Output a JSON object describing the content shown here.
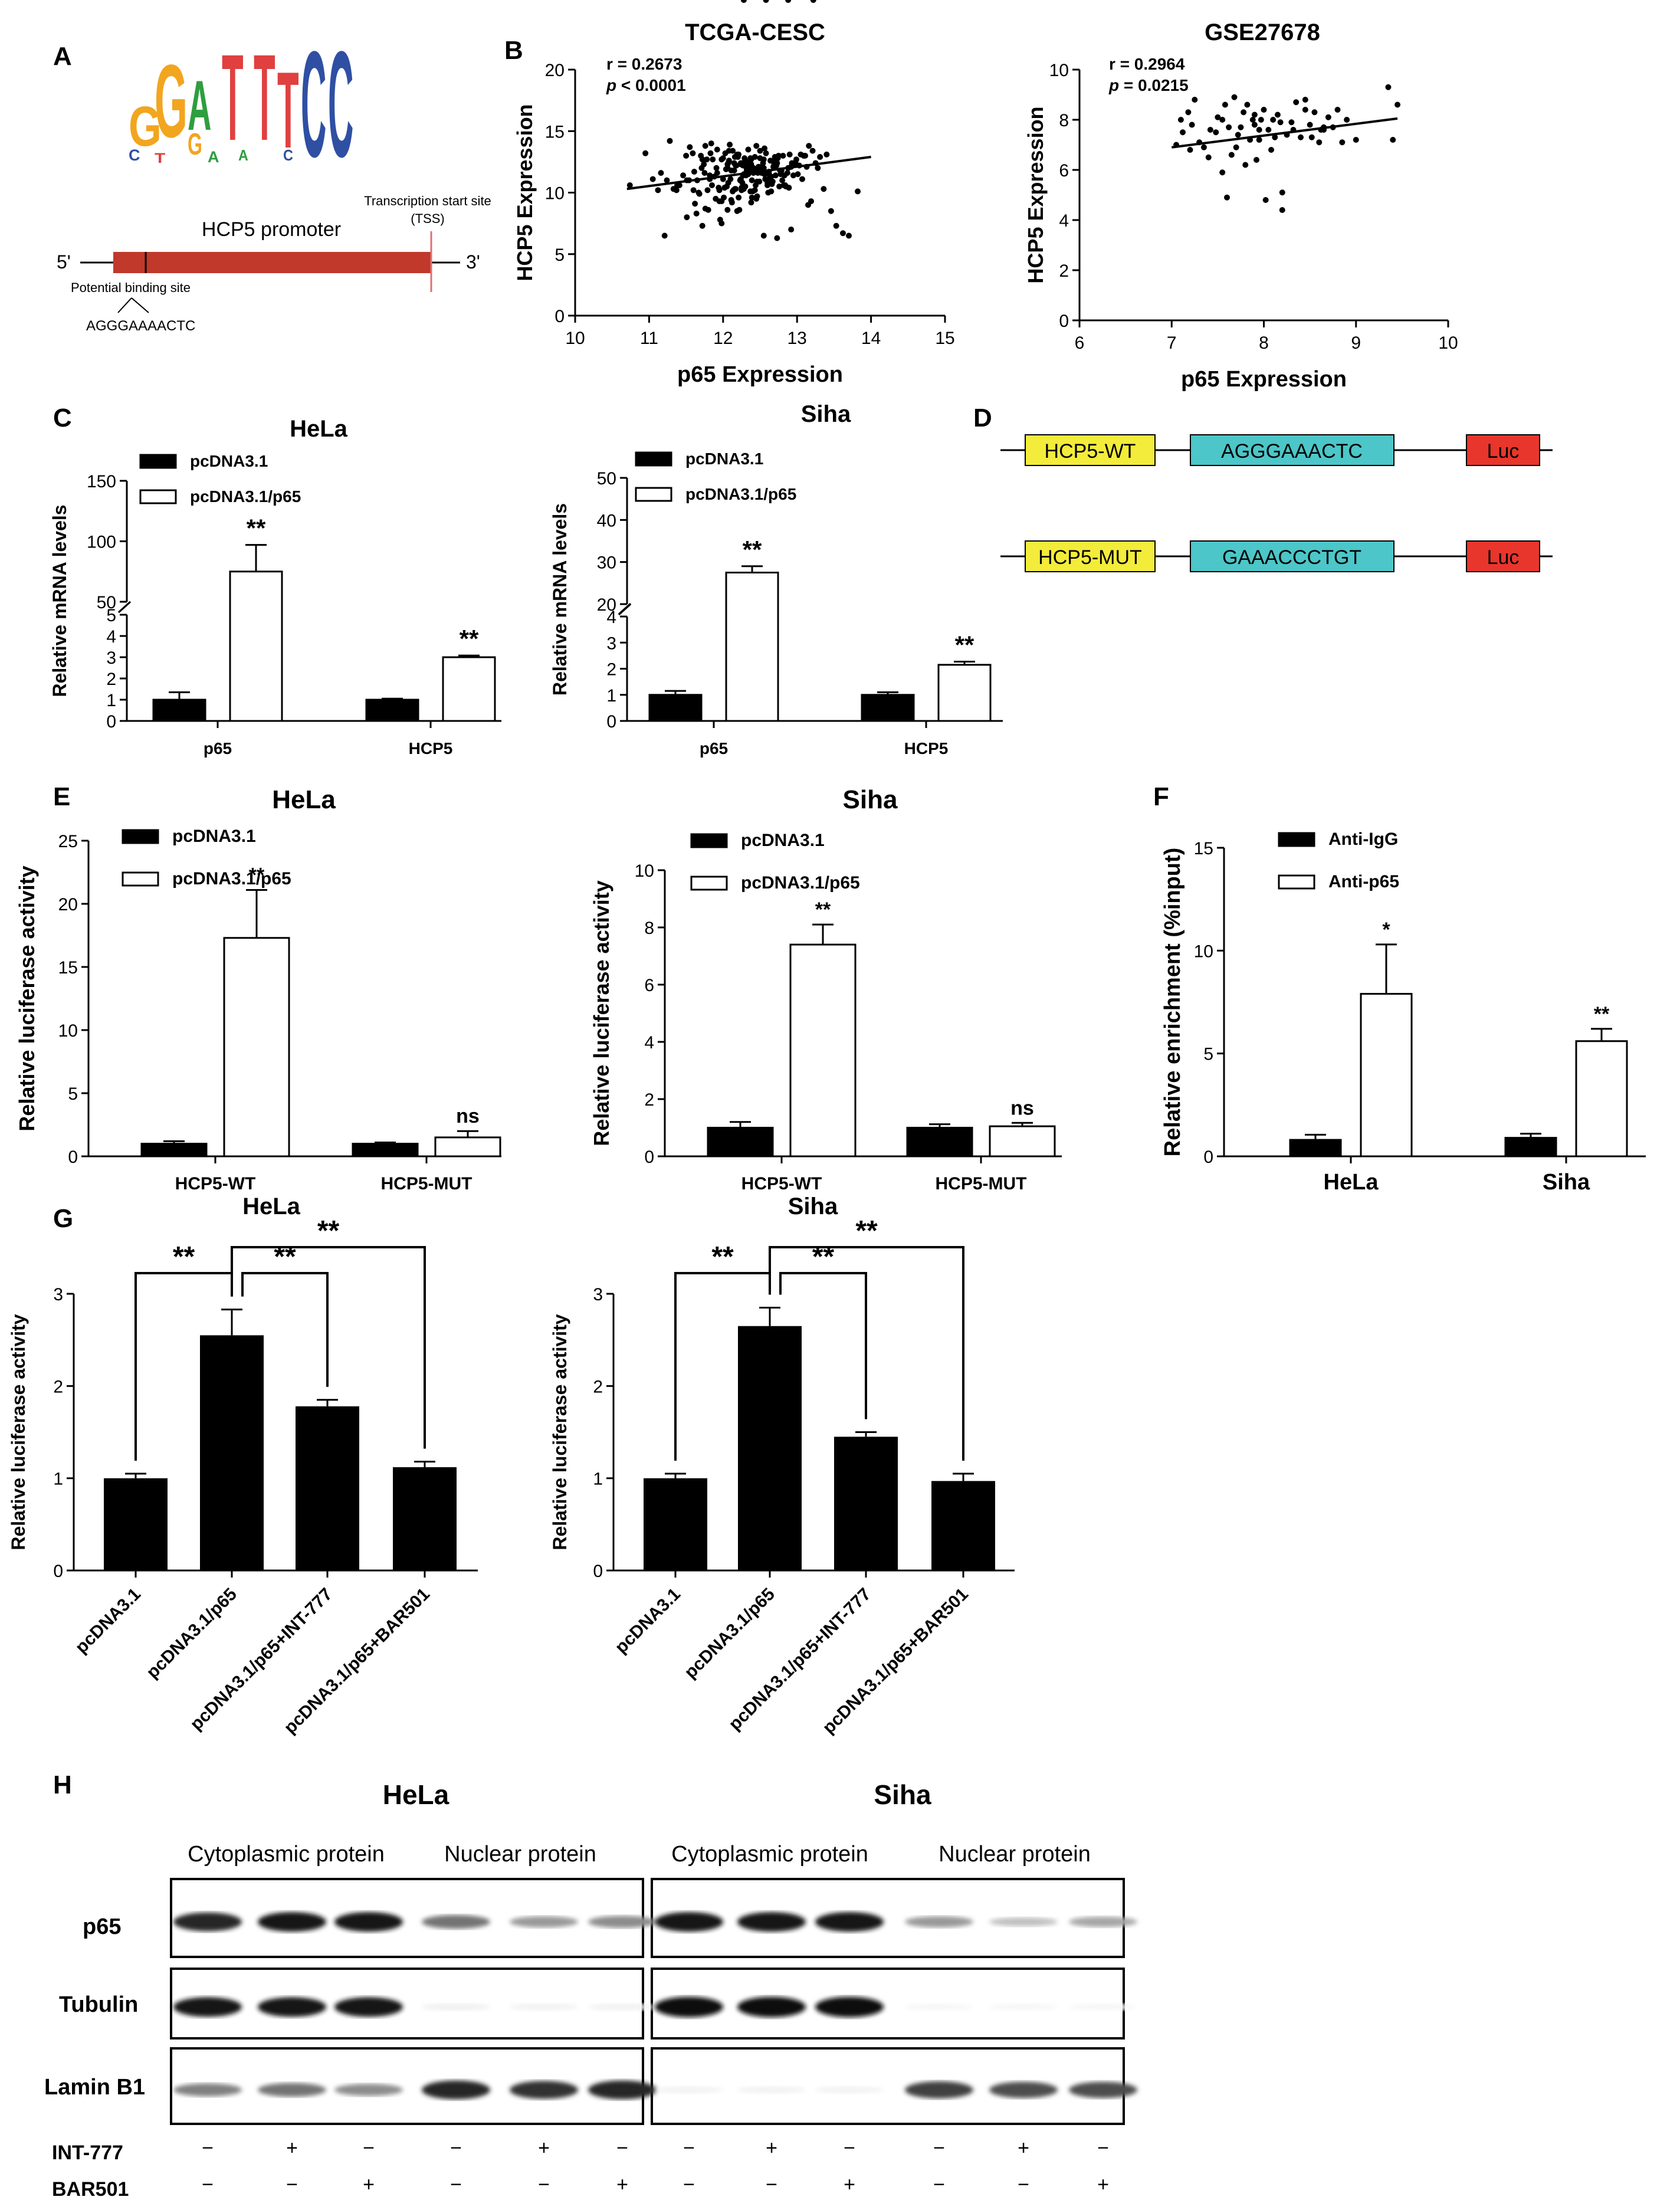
{
  "panel_labels": {
    "A": "A",
    "B": "B",
    "C": "C",
    "D": "D",
    "E": "E",
    "F": "F",
    "G": "G",
    "H": "H"
  },
  "panelA": {
    "logo_letters_top": [
      "G",
      "G",
      "A",
      "T",
      "T",
      "T",
      "C",
      "C"
    ],
    "logo_letters_sub": [
      "C",
      "T",
      "G",
      "A",
      "A",
      "C"
    ],
    "promoter_label": "HCP5 promoter",
    "tss_label": "Transcription start site",
    "tss_abbrev": "(TSS)",
    "five_prime": "5'",
    "three_prime": "3'",
    "binding_site_label": "Potential binding site",
    "binding_site_seq": "AGGGAAAACTC",
    "colors": {
      "promoter": "#c0392b",
      "tss_line": "#e07070",
      "G": "#f2a51f",
      "A": "#2e9e3e",
      "T": "#e04040",
      "C": "#2f4fa3"
    }
  },
  "panelD": {
    "rows": [
      {
        "name": "HCP5-WT",
        "seq": "AGGGAAACTC",
        "reporter": "Luc"
      },
      {
        "name": "HCP5-MUT",
        "seq": "GAAACCCTGT",
        "reporter": "Luc"
      }
    ],
    "colors": {
      "name_box": "#f3ec3a",
      "seq_box": "#4cc6c8",
      "luc_box": "#e8362c"
    }
  },
  "panelH": {
    "cell_titles": [
      "HeLa",
      "Siha"
    ],
    "fraction_labels": [
      "Cytoplasmic protein",
      "Nuclear protein",
      "Cytoplasmic protein",
      "Nuclear protein"
    ],
    "row_labels": [
      "p65",
      "Tubulin",
      "Lamin B1"
    ],
    "treatments": [
      {
        "name": "INT-777",
        "signs": [
          "−",
          "+",
          "−",
          "−",
          "+",
          "−",
          "−",
          "+",
          "−",
          "−",
          "+",
          "−"
        ]
      },
      {
        "name": "BAR501",
        "signs": [
          "−",
          "−",
          "+",
          "−",
          "−",
          "+",
          "−",
          "−",
          "+",
          "−",
          "−",
          "+"
        ]
      }
    ],
    "band_intensity": {
      "p65": [
        0.85,
        0.9,
        0.9,
        0.55,
        0.4,
        0.45,
        0.9,
        0.9,
        0.9,
        0.4,
        0.25,
        0.35
      ],
      "Tubulin": [
        0.9,
        0.9,
        0.9,
        0.06,
        0.05,
        0.05,
        0.95,
        0.95,
        0.95,
        0.03,
        0.03,
        0.03
      ],
      "Lamin B1": [
        0.5,
        0.55,
        0.45,
        0.85,
        0.8,
        0.85,
        0.05,
        0.05,
        0.05,
        0.75,
        0.7,
        0.7
      ]
    }
  },
  "chart_data": [
    {
      "id": "B1",
      "type": "scatter",
      "title": "TCGA-CESC",
      "xlabel": "p65 Expression",
      "ylabel": "HCP5 Expression",
      "xlim": [
        10,
        15
      ],
      "ylim": [
        0,
        20
      ],
      "xticks": [
        10,
        11,
        12,
        13,
        14,
        15
      ],
      "yticks": [
        0,
        5,
        10,
        15,
        20
      ],
      "stats": {
        "r": "r = 0.2673",
        "p_label": "p",
        "p_value": "< 0.0001"
      },
      "fit": {
        "x": [
          10.7,
          14.0
        ],
        "y": [
          10.3,
          12.9
        ]
      },
      "points_x": [
        10.74,
        11.05,
        11.12,
        11.16,
        11.21,
        11.24,
        11.33,
        11.37,
        11.38,
        11.41,
        11.46,
        11.5,
        11.51,
        11.51,
        11.54,
        11.59,
        11.6,
        11.61,
        11.62,
        11.65,
        11.67,
        11.68,
        11.71,
        11.72,
        11.72,
        11.74,
        11.75,
        11.76,
        11.76,
        11.78,
        11.79,
        11.8,
        11.82,
        11.82,
        11.83,
        11.85,
        11.86,
        11.88,
        11.9,
        11.91,
        11.92,
        11.92,
        11.94,
        11.95,
        11.95,
        11.96,
        11.98,
        11.98,
        12.0,
        12.0,
        12.01,
        12.02,
        12.03,
        12.04,
        12.05,
        12.06,
        12.06,
        12.07,
        12.07,
        12.08,
        12.08,
        12.09,
        12.1,
        12.11,
        12.11,
        12.12,
        12.13,
        12.13,
        12.14,
        12.15,
        12.15,
        12.16,
        12.16,
        12.17,
        12.17,
        12.18,
        12.19,
        12.19,
        12.2,
        12.21,
        12.21,
        12.22,
        12.23,
        12.24,
        12.24,
        12.25,
        12.25,
        12.26,
        12.27,
        12.27,
        12.28,
        12.28,
        12.29,
        12.29,
        12.3,
        12.3,
        12.31,
        12.31,
        12.32,
        12.32,
        12.32,
        12.33,
        12.34,
        12.34,
        12.35,
        12.35,
        12.36,
        12.37,
        12.37,
        12.38,
        12.38,
        12.39,
        12.39,
        12.4,
        12.4,
        12.41,
        12.41,
        12.42,
        12.43,
        12.43,
        12.44,
        12.45,
        12.45,
        12.46,
        12.46,
        12.47,
        12.48,
        12.48,
        12.49,
        12.5,
        12.5,
        12.51,
        12.52,
        12.52,
        12.53,
        12.54,
        12.55,
        12.55,
        12.56,
        12.56,
        12.57,
        12.58,
        12.59,
        12.6,
        12.6,
        12.61,
        12.62,
        12.62,
        12.63,
        12.64,
        12.65,
        12.65,
        12.66,
        12.67,
        12.68,
        12.69,
        12.7,
        12.7,
        12.71,
        12.72,
        12.73,
        12.74,
        12.75,
        12.76,
        12.77,
        12.78,
        12.79,
        12.8,
        12.81,
        12.82,
        12.83,
        12.84,
        12.85,
        12.87,
        12.88,
        12.89,
        12.9,
        12.92,
        12.93,
        12.95,
        12.96,
        12.98,
        12.99,
        13.01,
        13.03,
        13.05,
        13.07,
        13.09,
        13.11,
        13.13,
        13.16,
        13.19,
        13.21,
        13.25,
        13.28,
        13.31,
        13.36,
        13.4,
        13.46,
        13.53,
        13.62,
        13.7,
        13.82,
        10.95,
        11.28,
        11.55,
        11.7,
        11.84,
        12.06,
        12.24,
        12.38,
        12.55,
        12.73,
        12.92,
        13.15,
        11.64,
        11.98,
        12.28,
        12.58,
        12.88,
        13.22
      ],
      "points_y": [
        10.6,
        11.1,
        10.2,
        11.6,
        6.5,
        11.0,
        10.3,
        10.2,
        10.6,
        10.6,
        11.4,
        13.0,
        11.0,
        8.0,
        11.0,
        13.2,
        10.2,
        11.7,
        9.1,
        11.0,
        10.0,
        9.9,
        12.0,
        7.3,
        12.7,
        12.3,
        11.6,
        8.7,
        13.8,
        12.7,
        10.2,
        8.6,
        11.4,
        11.1,
        13.2,
        10.6,
        12.7,
        11.3,
        9.5,
        12.0,
        11.6,
        13.5,
        10.4,
        9.3,
        10.2,
        7.8,
        9.3,
        12.7,
        11.1,
        12.8,
        9.6,
        10.4,
        13.2,
        11.9,
        10.5,
        8.6,
        12.0,
        10.8,
        12.4,
        12.6,
        13.4,
        13.9,
        11.1,
        9.4,
        11.8,
        9.2,
        10.1,
        13.4,
        10.2,
        12.4,
        11.8,
        12.9,
        10.3,
        10.3,
        12.2,
        12.2,
        8.5,
        13.1,
        12.9,
        13.1,
        9.6,
        8.6,
        11.0,
        12.3,
        12.4,
        10.4,
        10.2,
        10.8,
        11.4,
        12.2,
        10.3,
        11.5,
        12.8,
        12.5,
        10.5,
        12.6,
        11.4,
        12.1,
        11.9,
        11.8,
        11.5,
        12.4,
        11.5,
        13.5,
        12.1,
        12.3,
        11.7,
        10.1,
        12.8,
        12.7,
        12.3,
        9.6,
        11.0,
        10.1,
        11.9,
        11.6,
        12.0,
        11.8,
        12.9,
        10.2,
        10.6,
        13.8,
        9.5,
        9.7,
        10.9,
        11.6,
        12.0,
        12.1,
        10.9,
        13.4,
        12.8,
        11.9,
        11.6,
        11.8,
        12.1,
        12.4,
        12.7,
        12.0,
        13.6,
        11.5,
        11.1,
        13.2,
        11.6,
        10.8,
        10.6,
        10.0,
        11.7,
        11.5,
        11.2,
        12.6,
        10.1,
        11.3,
        10.7,
        10.9,
        12.1,
        12.4,
        12.7,
        12.9,
        11.4,
        12.2,
        12.4,
        12.8,
        13.0,
        10.5,
        11.8,
        11.5,
        11.8,
        11.0,
        13.0,
        10.6,
        11.4,
        10.6,
        10.5,
        11.6,
        12.0,
        10.4,
        13.1,
        12.1,
        12.4,
        11.4,
        12.4,
        12.4,
        12.7,
        11.5,
        12.2,
        13.1,
        11.1,
        13.0,
        13.0,
        12.1,
        13.8,
        9.3,
        13.4,
        12.4,
        12.0,
        12.9,
        10.3,
        13.1,
        8.5,
        7.3,
        6.7,
        6.5,
        10.1,
        13.2,
        14.2,
        13.7,
        13.0,
        14.0,
        12.3,
        11.1,
        9.2,
        6.5,
        6.3,
        7.0,
        9.0,
        8.3,
        7.5
      ],
      "colors": {
        "points": "#000000",
        "line": "#000000"
      }
    },
    {
      "id": "B2",
      "type": "scatter",
      "title": "GSE27678",
      "xlabel": "p65 Expression",
      "ylabel": "HCP5 Expression",
      "xlim": [
        6,
        10
      ],
      "ylim": [
        0,
        10
      ],
      "xticks": [
        6,
        7,
        8,
        9,
        10
      ],
      "yticks": [
        0,
        2,
        4,
        6,
        8,
        10
      ],
      "stats": {
        "r": "r = 0.2964",
        "p_label": "p",
        "p_value": "= 0.0215"
      },
      "fit": {
        "x": [
          7.0,
          9.45
        ],
        "y": [
          6.9,
          8.05
        ]
      },
      "points_x": [
        7.05,
        7.1,
        7.12,
        7.18,
        7.2,
        7.22,
        7.25,
        7.3,
        7.35,
        7.4,
        7.42,
        7.48,
        7.5,
        7.55,
        7.58,
        7.6,
        7.62,
        7.65,
        7.68,
        7.7,
        7.72,
        7.75,
        7.78,
        7.8,
        7.82,
        7.85,
        7.88,
        7.9,
        7.92,
        7.95,
        7.97,
        8.0,
        8.02,
        8.05,
        8.08,
        8.1,
        8.12,
        8.15,
        8.18,
        8.2,
        8.25,
        8.3,
        8.32,
        8.35,
        8.4,
        8.45,
        8.5,
        8.52,
        8.55,
        8.6,
        8.62,
        8.65,
        8.7,
        8.75,
        8.8,
        8.85,
        8.9,
        9.0,
        9.35,
        9.4,
        9.45,
        7.95,
        8.2,
        7.55,
        7.9,
        8.45,
        8.65
      ],
      "points_y": [
        7.0,
        8.0,
        7.5,
        8.3,
        6.8,
        7.8,
        8.8,
        7.1,
        6.9,
        6.5,
        7.6,
        7.5,
        8.1,
        5.9,
        8.6,
        4.9,
        7.7,
        6.6,
        8.9,
        6.9,
        7.4,
        7.7,
        8.3,
        6.2,
        8.6,
        7.2,
        8.0,
        7.8,
        6.4,
        7.6,
        8.0,
        8.4,
        4.8,
        7.6,
        6.8,
        8.0,
        7.3,
        8.2,
        7.9,
        5.1,
        7.4,
        7.9,
        7.6,
        8.7,
        7.3,
        8.8,
        7.8,
        7.3,
        8.3,
        7.1,
        7.6,
        7.7,
        8.1,
        7.7,
        8.4,
        7.1,
        8.0,
        7.2,
        9.3,
        7.2,
        8.6,
        7.2,
        4.4,
        8.0,
        8.2,
        8.4,
        7.6
      ],
      "colors": {
        "points": "#000000",
        "line": "#000000"
      }
    },
    {
      "id": "C1",
      "type": "bar",
      "title": "HeLa",
      "ylabel": "Relative mRNA levels",
      "categories": [
        "p65",
        "HCP5"
      ],
      "series": [
        {
          "name": "pcDNA3.1",
          "values": [
            1.0,
            1.0
          ],
          "errors": [
            0.35,
            0.05
          ]
        },
        {
          "name": "pcDNA3.1/p65",
          "values": [
            75,
            3.0
          ],
          "errors": [
            22,
            0.08
          ]
        }
      ],
      "broken_axis": {
        "lower": [
          0,
          5
        ],
        "upper": [
          50,
          150
        ]
      },
      "yticks_lower": [
        0,
        1,
        2,
        3,
        4,
        5
      ],
      "yticks_upper": [
        50,
        100,
        150
      ],
      "annotations": [
        {
          "series": 1,
          "category": 0,
          "text": "**"
        },
        {
          "series": 1,
          "category": 1,
          "text": "**"
        }
      ],
      "legend_position": "top-left"
    },
    {
      "id": "C2",
      "type": "bar",
      "title": "Siha",
      "ylabel": "Relative mRNA levels",
      "categories": [
        "p65",
        "HCP5"
      ],
      "series": [
        {
          "name": "pcDNA3.1",
          "values": [
            1.0,
            1.0
          ],
          "errors": [
            0.15,
            0.1
          ]
        },
        {
          "name": "pcDNA3.1/p65",
          "values": [
            27.5,
            2.15
          ],
          "errors": [
            1.5,
            0.12
          ]
        }
      ],
      "broken_axis": {
        "lower": [
          0,
          4
        ],
        "upper": [
          20,
          50
        ]
      },
      "yticks_lower": [
        0,
        1,
        2,
        3,
        4
      ],
      "yticks_upper": [
        20,
        30,
        40,
        50
      ],
      "annotations": [
        {
          "series": 1,
          "category": 0,
          "text": "**"
        },
        {
          "series": 1,
          "category": 1,
          "text": "**"
        }
      ],
      "legend_position": "top-left"
    },
    {
      "id": "E1",
      "type": "bar",
      "title": "HeLa",
      "ylabel": "Relative luciferase activity",
      "categories": [
        "HCP5-WT",
        "HCP5-MUT"
      ],
      "ylim": [
        0,
        25
      ],
      "yticks": [
        0,
        5,
        10,
        15,
        20,
        25
      ],
      "series": [
        {
          "name": "pcDNA3.1",
          "values": [
            1.0,
            1.0
          ],
          "errors": [
            0.2,
            0.1
          ]
        },
        {
          "name": "pcDNA3.1/p65",
          "values": [
            17.3,
            1.5
          ],
          "errors": [
            3.8,
            0.5
          ]
        }
      ],
      "annotations": [
        {
          "series": 1,
          "category": 0,
          "text": "**"
        },
        {
          "series": 1,
          "category": 1,
          "text": "ns"
        }
      ],
      "legend_position": "top-left"
    },
    {
      "id": "E2",
      "type": "bar",
      "title": "Siha",
      "ylabel": "Relative luciferase activity",
      "categories": [
        "HCP5-WT",
        "HCP5-MUT"
      ],
      "ylim": [
        0,
        10
      ],
      "yticks": [
        0,
        2,
        4,
        6,
        8,
        10
      ],
      "series": [
        {
          "name": "pcDNA3.1",
          "values": [
            1.0,
            1.0
          ],
          "errors": [
            0.2,
            0.12
          ]
        },
        {
          "name": "pcDNA3.1/p65",
          "values": [
            7.4,
            1.05
          ],
          "errors": [
            0.7,
            0.12
          ]
        }
      ],
      "annotations": [
        {
          "series": 1,
          "category": 0,
          "text": "**"
        },
        {
          "series": 1,
          "category": 1,
          "text": "ns"
        }
      ],
      "legend_position": "top-left"
    },
    {
      "id": "F",
      "type": "bar",
      "title": "",
      "ylabel": "Relative enrichment (%input)",
      "categories": [
        "HeLa",
        "Siha"
      ],
      "ylim": [
        0,
        15
      ],
      "yticks": [
        0,
        5,
        10,
        15
      ],
      "series": [
        {
          "name": "Anti-IgG",
          "values": [
            0.8,
            0.9
          ],
          "errors": [
            0.25,
            0.2
          ]
        },
        {
          "name": "Anti-p65",
          "values": [
            7.9,
            5.6
          ],
          "errors": [
            2.4,
            0.6
          ]
        }
      ],
      "annotations": [
        {
          "series": 1,
          "category": 0,
          "text": "*"
        },
        {
          "series": 1,
          "category": 1,
          "text": "**"
        }
      ],
      "legend_position": "top-left"
    },
    {
      "id": "G1",
      "type": "bar",
      "title": "HeLa",
      "ylabel": "Relative luciferase activity",
      "categories": [
        "pcDNA3.1",
        "pcDNA3.1/p65",
        "pcDNA3.1/p65+INT-777",
        "pcDNA3.1/p65+BAR501"
      ],
      "values": [
        1.0,
        2.55,
        1.78,
        1.12
      ],
      "errors": [
        0.05,
        0.28,
        0.07,
        0.06
      ],
      "ylim": [
        0,
        3
      ],
      "yticks": [
        0,
        1,
        2,
        3
      ],
      "brackets": [
        {
          "from": 0,
          "to": 1,
          "level": 0,
          "text": "**"
        },
        {
          "from": 1,
          "to": 2,
          "level": 0,
          "text": "**"
        },
        {
          "from": 1,
          "to": 3,
          "level": 1,
          "text": "**"
        }
      ]
    },
    {
      "id": "G2",
      "type": "bar",
      "title": "Siha",
      "ylabel": "Relative luciferase activity",
      "categories": [
        "pcDNA3.1",
        "pcDNA3.1/p65",
        "pcDNA3.1/p65+INT-777",
        "pcDNA3.1/p65+BAR501"
      ],
      "values": [
        1.0,
        2.65,
        1.45,
        0.97
      ],
      "errors": [
        0.05,
        0.2,
        0.05,
        0.08
      ],
      "ylim": [
        0,
        3
      ],
      "yticks": [
        0,
        1,
        2,
        3
      ],
      "brackets": [
        {
          "from": 0,
          "to": 1,
          "level": 0,
          "text": "**"
        },
        {
          "from": 1,
          "to": 2,
          "level": 0,
          "text": "**"
        },
        {
          "from": 1,
          "to": 3,
          "level": 1,
          "text": "**"
        }
      ]
    }
  ]
}
